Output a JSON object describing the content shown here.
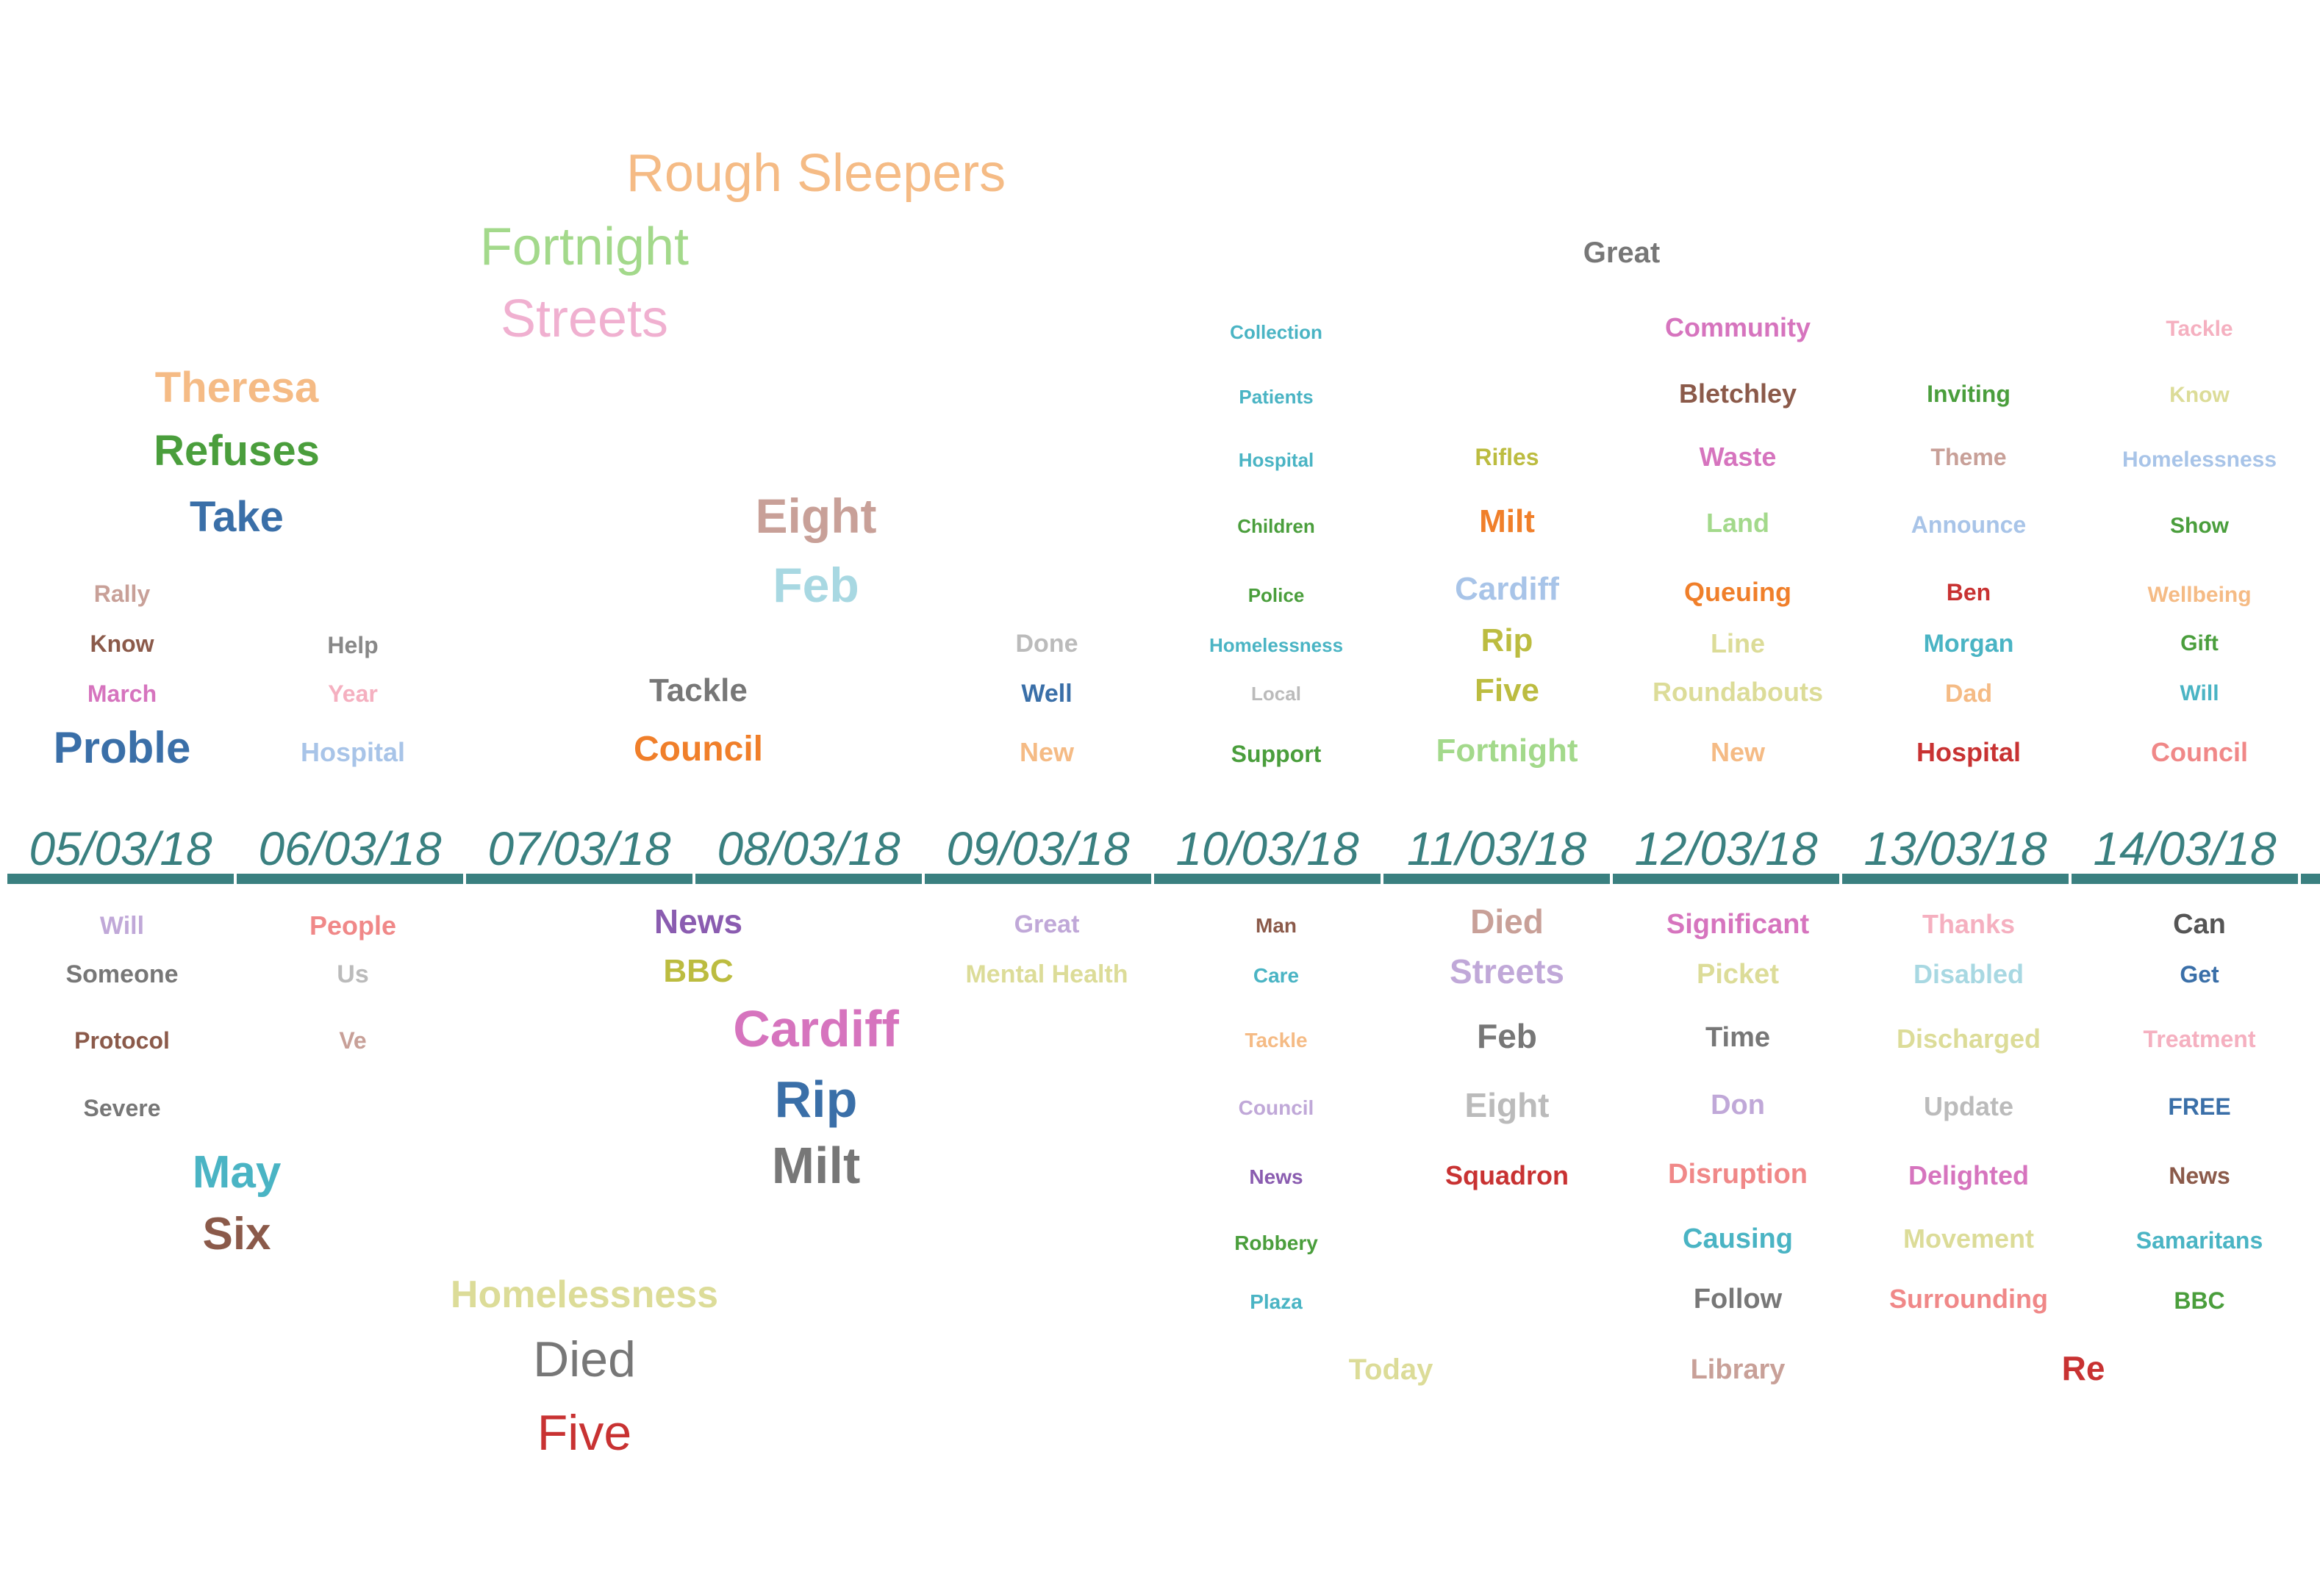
{
  "chart_data": {
    "type": "word-timeline",
    "axis_color": "#3a8080",
    "dates": [
      "05/03/18",
      "06/03/18",
      "07/03/18",
      "08/03/18",
      "09/03/18",
      "10/03/18",
      "11/03/18",
      "12/03/18",
      "13/03/18",
      "14/03/18"
    ],
    "words": [
      {
        "text": "Rough Sleepers",
        "date": "07/03/18",
        "side": "above",
        "color": "#f5bb85",
        "bold": false
      },
      {
        "text": "Fortnight",
        "date": "07/03/18",
        "side": "above",
        "color": "#a3d98b",
        "bold": false
      },
      {
        "text": "Streets",
        "date": "07/03/18",
        "side": "above",
        "color": "#f0b0d0",
        "bold": false
      },
      {
        "text": "Theresa",
        "date": "05/03/18",
        "side": "above",
        "color": "#f5bb85",
        "bold": true
      },
      {
        "text": "Refuses",
        "date": "05/03/18",
        "side": "above",
        "color": "#4a9e3c",
        "bold": true
      },
      {
        "text": "Take",
        "date": "05/03/18",
        "side": "above",
        "color": "#3a6fa8",
        "bold": true
      },
      {
        "text": "Eight",
        "date": "08/03/18",
        "side": "above",
        "color": "#c8a098",
        "bold": true
      },
      {
        "text": "Feb",
        "date": "08/03/18",
        "side": "above",
        "color": "#a8d8e2",
        "bold": true
      },
      {
        "text": "Rally",
        "date": "05/03/18",
        "side": "above",
        "color": "#c8a098",
        "bold": true
      },
      {
        "text": "Know",
        "date": "05/03/18",
        "side": "above",
        "color": "#8b5a4a",
        "bold": true
      },
      {
        "text": "March",
        "date": "05/03/18",
        "side": "above",
        "color": "#d674be",
        "bold": true
      },
      {
        "text": "Proble",
        "date": "05/03/18",
        "side": "above",
        "color": "#3a6fa8",
        "bold": true
      },
      {
        "text": "Help",
        "date": "06/03/18",
        "side": "above",
        "color": "#888888",
        "bold": true
      },
      {
        "text": "Year",
        "date": "06/03/18",
        "side": "above",
        "color": "#f5b0c0",
        "bold": true
      },
      {
        "text": "Hospital",
        "date": "06/03/18",
        "side": "above",
        "color": "#a8c4e8",
        "bold": true
      },
      {
        "text": "Tackle",
        "date": "07/03/18",
        "side": "above",
        "color": "#777777",
        "bold": true
      },
      {
        "text": "Council",
        "date": "07/03/18",
        "side": "above",
        "color": "#f07f2a",
        "bold": true
      },
      {
        "text": "Done",
        "date": "09/03/18",
        "side": "above",
        "color": "#bbbbbb",
        "bold": true
      },
      {
        "text": "Well",
        "date": "09/03/18",
        "side": "above",
        "color": "#3a6fa8",
        "bold": true
      },
      {
        "text": "New",
        "date": "09/03/18",
        "side": "above",
        "color": "#f5bb85",
        "bold": true
      },
      {
        "text": "Collection",
        "date": "10/03/18",
        "side": "above",
        "color": "#4ab4c4",
        "bold": true
      },
      {
        "text": "Patients",
        "date": "10/03/18",
        "side": "above",
        "color": "#4ab4c4",
        "bold": true
      },
      {
        "text": "Hospital",
        "date": "10/03/18",
        "side": "above",
        "color": "#4ab4c4",
        "bold": true
      },
      {
        "text": "Children",
        "date": "10/03/18",
        "side": "above",
        "color": "#4a9e3c",
        "bold": true
      },
      {
        "text": "Police",
        "date": "10/03/18",
        "side": "above",
        "color": "#4a9e3c",
        "bold": true
      },
      {
        "text": "Homelessness",
        "date": "10/03/18",
        "side": "above",
        "color": "#4ab4c4",
        "bold": true
      },
      {
        "text": "Local",
        "date": "10/03/18",
        "side": "above",
        "color": "#bbbbbb",
        "bold": true
      },
      {
        "text": "Support",
        "date": "10/03/18",
        "side": "above",
        "color": "#4a9e3c",
        "bold": true
      },
      {
        "text": "Great",
        "date": "11/03/18",
        "side": "above",
        "color": "#777777",
        "bold": true
      },
      {
        "text": "Rifles",
        "date": "11/03/18",
        "side": "above",
        "color": "#bcbc40",
        "bold": true
      },
      {
        "text": "Milt",
        "date": "11/03/18",
        "side": "above",
        "color": "#f07f2a",
        "bold": true
      },
      {
        "text": "Cardiff",
        "date": "11/03/18",
        "side": "above",
        "color": "#a8c4e8",
        "bold": true
      },
      {
        "text": "Rip",
        "date": "11/03/18",
        "side": "above",
        "color": "#bcbc40",
        "bold": true
      },
      {
        "text": "Five",
        "date": "11/03/18",
        "side": "above",
        "color": "#bcbc40",
        "bold": true
      },
      {
        "text": "Fortnight",
        "date": "11/03/18",
        "side": "above",
        "color": "#a3d98b",
        "bold": true
      },
      {
        "text": "Community",
        "date": "12/03/18",
        "side": "above",
        "color": "#d674be",
        "bold": true
      },
      {
        "text": "Bletchley",
        "date": "12/03/18",
        "side": "above",
        "color": "#8b5a4a",
        "bold": true
      },
      {
        "text": "Waste",
        "date": "12/03/18",
        "side": "above",
        "color": "#d674be",
        "bold": true
      },
      {
        "text": "Land",
        "date": "12/03/18",
        "side": "above",
        "color": "#a3d98b",
        "bold": true
      },
      {
        "text": "Queuing",
        "date": "12/03/18",
        "side": "above",
        "color": "#f07f2a",
        "bold": true
      },
      {
        "text": "Line",
        "date": "12/03/18",
        "side": "above",
        "color": "#dcdc98",
        "bold": true
      },
      {
        "text": "Roundabouts",
        "date": "12/03/18",
        "side": "above",
        "color": "#dcdc98",
        "bold": true
      },
      {
        "text": "New",
        "date": "12/03/18",
        "side": "above",
        "color": "#f5bb85",
        "bold": true
      },
      {
        "text": "Inviting",
        "date": "13/03/18",
        "side": "above",
        "color": "#4a9e3c",
        "bold": true
      },
      {
        "text": "Theme",
        "date": "13/03/18",
        "side": "above",
        "color": "#c8a098",
        "bold": true
      },
      {
        "text": "Announce",
        "date": "13/03/18",
        "side": "above",
        "color": "#a8c4e8",
        "bold": true
      },
      {
        "text": "Ben",
        "date": "13/03/18",
        "side": "above",
        "color": "#c83232",
        "bold": true
      },
      {
        "text": "Morgan",
        "date": "13/03/18",
        "side": "above",
        "color": "#4ab4c4",
        "bold": true
      },
      {
        "text": "Dad",
        "date": "13/03/18",
        "side": "above",
        "color": "#f5bb85",
        "bold": true
      },
      {
        "text": "Hospital",
        "date": "13/03/18",
        "side": "above",
        "color": "#c83232",
        "bold": true
      },
      {
        "text": "Tackle",
        "date": "14/03/18",
        "side": "above",
        "color": "#f5b0c0",
        "bold": true
      },
      {
        "text": "Know",
        "date": "14/03/18",
        "side": "above",
        "color": "#dcdc98",
        "bold": true
      },
      {
        "text": "Homelessness",
        "date": "14/03/18",
        "side": "above",
        "color": "#a8c4e8",
        "bold": true
      },
      {
        "text": "Show",
        "date": "14/03/18",
        "side": "above",
        "color": "#4a9e3c",
        "bold": true
      },
      {
        "text": "Wellbeing",
        "date": "14/03/18",
        "side": "above",
        "color": "#f5bb85",
        "bold": true
      },
      {
        "text": "Gift",
        "date": "14/03/18",
        "side": "above",
        "color": "#4a9e3c",
        "bold": true
      },
      {
        "text": "Will",
        "date": "14/03/18",
        "side": "above",
        "color": "#4ab4c4",
        "bold": true
      },
      {
        "text": "Council",
        "date": "14/03/18",
        "side": "above",
        "color": "#f08888",
        "bold": true
      },
      {
        "text": "Will",
        "date": "05/03/18",
        "side": "below",
        "color": "#c0a8d8",
        "bold": true
      },
      {
        "text": "Someone",
        "date": "05/03/18",
        "side": "below",
        "color": "#777777",
        "bold": true
      },
      {
        "text": "Protocol",
        "date": "05/03/18",
        "side": "below",
        "color": "#8b5a4a",
        "bold": true
      },
      {
        "text": "Severe",
        "date": "05/03/18",
        "side": "below",
        "color": "#777777",
        "bold": true
      },
      {
        "text": "May",
        "date": "05/03/18",
        "side": "below",
        "color": "#4ab4c4",
        "bold": true
      },
      {
        "text": "Six",
        "date": "05/03/18",
        "side": "below",
        "color": "#8b5a4a",
        "bold": true
      },
      {
        "text": "People",
        "date": "06/03/18",
        "side": "below",
        "color": "#f08888",
        "bold": true
      },
      {
        "text": "Us",
        "date": "06/03/18",
        "side": "below",
        "color": "#bbbbbb",
        "bold": true
      },
      {
        "text": "Ve",
        "date": "06/03/18",
        "side": "below",
        "color": "#c8a098",
        "bold": true
      },
      {
        "text": "News",
        "date": "07/03/18",
        "side": "below",
        "color": "#8a5cb0",
        "bold": true
      },
      {
        "text": "BBC",
        "date": "07/03/18",
        "side": "below",
        "color": "#bcbc40",
        "bold": true
      },
      {
        "text": "Homelessness",
        "date": "07/03/18",
        "side": "below",
        "color": "#dcdc98",
        "bold": true
      },
      {
        "text": "Died",
        "date": "07/03/18",
        "side": "below",
        "color": "#777777",
        "bold": false
      },
      {
        "text": "Five",
        "date": "07/03/18",
        "side": "below",
        "color": "#c83232",
        "bold": false
      },
      {
        "text": "Cardiff",
        "date": "08/03/18",
        "side": "below",
        "color": "#d674be",
        "bold": true
      },
      {
        "text": "Rip",
        "date": "08/03/18",
        "side": "below",
        "color": "#3a6fa8",
        "bold": true
      },
      {
        "text": "Milt",
        "date": "08/03/18",
        "side": "below",
        "color": "#777777",
        "bold": true
      },
      {
        "text": "Great",
        "date": "09/03/18",
        "side": "below",
        "color": "#c0a8d8",
        "bold": true
      },
      {
        "text": "Mental Health",
        "date": "09/03/18",
        "side": "below",
        "color": "#dcdc98",
        "bold": true
      },
      {
        "text": "Man",
        "date": "10/03/18",
        "side": "below",
        "color": "#8b5a4a",
        "bold": true
      },
      {
        "text": "Care",
        "date": "10/03/18",
        "side": "below",
        "color": "#4ab4c4",
        "bold": true
      },
      {
        "text": "Tackle",
        "date": "10/03/18",
        "side": "below",
        "color": "#f5bb85",
        "bold": true
      },
      {
        "text": "Council",
        "date": "10/03/18",
        "side": "below",
        "color": "#c0a8d8",
        "bold": true
      },
      {
        "text": "News",
        "date": "10/03/18",
        "side": "below",
        "color": "#8a5cb0",
        "bold": true
      },
      {
        "text": "Robbery",
        "date": "10/03/18",
        "side": "below",
        "color": "#4a9e3c",
        "bold": true
      },
      {
        "text": "Plaza",
        "date": "10/03/18",
        "side": "below",
        "color": "#4ab4c4",
        "bold": true
      },
      {
        "text": "Today",
        "date": "10/03/18",
        "side": "below",
        "color": "#dcdc98",
        "bold": true
      },
      {
        "text": "Died",
        "date": "11/03/18",
        "side": "below",
        "color": "#c8a098",
        "bold": true
      },
      {
        "text": "Streets",
        "date": "11/03/18",
        "side": "below",
        "color": "#c0a8d8",
        "bold": true
      },
      {
        "text": "Feb",
        "date": "11/03/18",
        "side": "below",
        "color": "#777777",
        "bold": true
      },
      {
        "text": "Eight",
        "date": "11/03/18",
        "side": "below",
        "color": "#bbbbbb",
        "bold": true
      },
      {
        "text": "Squadron",
        "date": "11/03/18",
        "side": "below",
        "color": "#c83232",
        "bold": true
      },
      {
        "text": "Significant",
        "date": "12/03/18",
        "side": "below",
        "color": "#d674be",
        "bold": true
      },
      {
        "text": "Picket",
        "date": "12/03/18",
        "side": "below",
        "color": "#dcdc98",
        "bold": true
      },
      {
        "text": "Time",
        "date": "12/03/18",
        "side": "below",
        "color": "#777777",
        "bold": true
      },
      {
        "text": "Don",
        "date": "12/03/18",
        "side": "below",
        "color": "#c0a8d8",
        "bold": true
      },
      {
        "text": "Disruption",
        "date": "12/03/18",
        "side": "below",
        "color": "#f08888",
        "bold": true
      },
      {
        "text": "Causing",
        "date": "12/03/18",
        "side": "below",
        "color": "#4ab4c4",
        "bold": true
      },
      {
        "text": "Follow",
        "date": "12/03/18",
        "side": "below",
        "color": "#777777",
        "bold": true
      },
      {
        "text": "Library",
        "date": "12/03/18",
        "side": "below",
        "color": "#c8a098",
        "bold": true
      },
      {
        "text": "Thanks",
        "date": "13/03/18",
        "side": "below",
        "color": "#f5b0c0",
        "bold": true
      },
      {
        "text": "Disabled",
        "date": "13/03/18",
        "side": "below",
        "color": "#a8d8e2",
        "bold": true
      },
      {
        "text": "Discharged",
        "date": "13/03/18",
        "side": "below",
        "color": "#dcdc98",
        "bold": true
      },
      {
        "text": "Update",
        "date": "13/03/18",
        "side": "below",
        "color": "#bbbbbb",
        "bold": true
      },
      {
        "text": "Delighted",
        "date": "13/03/18",
        "side": "below",
        "color": "#d674be",
        "bold": true
      },
      {
        "text": "Movement",
        "date": "13/03/18",
        "side": "below",
        "color": "#dcdc98",
        "bold": true
      },
      {
        "text": "Surrounding",
        "date": "13/03/18",
        "side": "below",
        "color": "#f08888",
        "bold": true
      },
      {
        "text": "Re",
        "date": "13/03/18",
        "side": "below",
        "color": "#c83232",
        "bold": true
      },
      {
        "text": "Can",
        "date": "14/03/18",
        "side": "below",
        "color": "#555555",
        "bold": true
      },
      {
        "text": "Get",
        "date": "14/03/18",
        "side": "below",
        "color": "#3a6fa8",
        "bold": true
      },
      {
        "text": "Treatment",
        "date": "14/03/18",
        "side": "below",
        "color": "#f5b0c0",
        "bold": true
      },
      {
        "text": "FREE",
        "date": "14/03/18",
        "side": "below",
        "color": "#3a6fa8",
        "bold": true
      },
      {
        "text": "News",
        "date": "14/03/18",
        "side": "below",
        "color": "#8b5a4a",
        "bold": true
      },
      {
        "text": "Samaritans",
        "date": "14/03/18",
        "side": "below",
        "color": "#4ab4c4",
        "bold": true
      },
      {
        "text": "BBC",
        "date": "14/03/18",
        "side": "below",
        "color": "#4a9e3c",
        "bold": true
      }
    ]
  }
}
